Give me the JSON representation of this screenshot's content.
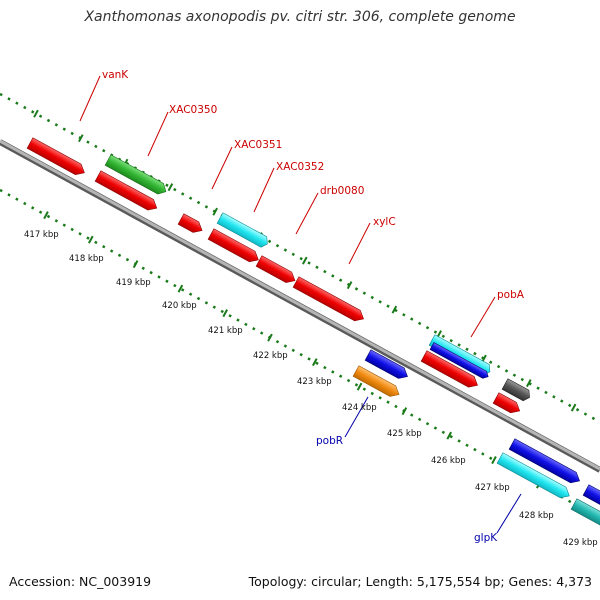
{
  "title": "Xanthomonas axonopodis pv. citri str. 306, complete genome",
  "footer": {
    "accession": "Accession: NC_003919",
    "summary": "Topology: circular; Length: 5,175,554 bp; Genes: 4,373"
  },
  "colors": {
    "backbone": "#8a8a8a",
    "tick": "#1a7a1a",
    "forward_label": "#cc0000",
    "reverse_label": "#0000aa"
  },
  "tick_labels": [
    "417 kbp",
    "418 kbp",
    "419 kbp",
    "420 kbp",
    "421 kbp",
    "422 kbp",
    "423 kbp",
    "424 kbp",
    "425 kbp",
    "426 kbp",
    "427 kbp",
    "428 kbp",
    "429 kbp"
  ],
  "labels": [
    {
      "text": "vanK",
      "strand": "forward"
    },
    {
      "text": "XAC0350",
      "strand": "forward"
    },
    {
      "text": "XAC0351",
      "strand": "forward"
    },
    {
      "text": "XAC0352",
      "strand": "forward"
    },
    {
      "text": "drb0080",
      "strand": "forward"
    },
    {
      "text": "xylC",
      "strand": "forward"
    },
    {
      "text": "pobA",
      "strand": "forward"
    },
    {
      "text": "pobR",
      "strand": "reverse"
    },
    {
      "text": "glpK",
      "strand": "reverse"
    }
  ]
}
